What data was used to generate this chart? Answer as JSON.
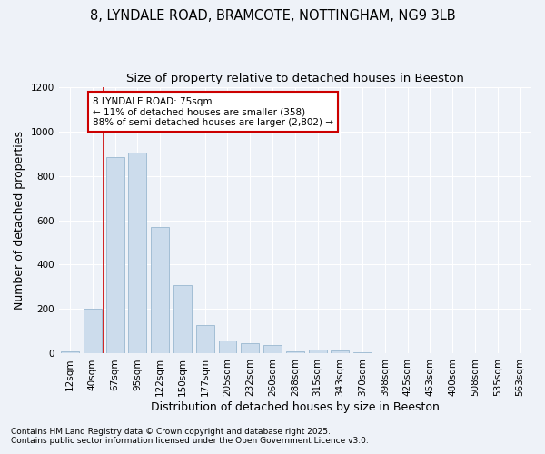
{
  "title_line1": "8, LYNDALE ROAD, BRAMCOTE, NOTTINGHAM, NG9 3LB",
  "title_line2": "Size of property relative to detached houses in Beeston",
  "xlabel": "Distribution of detached houses by size in Beeston",
  "ylabel": "Number of detached properties",
  "categories": [
    "12sqm",
    "40sqm",
    "67sqm",
    "95sqm",
    "122sqm",
    "150sqm",
    "177sqm",
    "205sqm",
    "232sqm",
    "260sqm",
    "288sqm",
    "315sqm",
    "343sqm",
    "370sqm",
    "398sqm",
    "425sqm",
    "453sqm",
    "480sqm",
    "508sqm",
    "535sqm",
    "563sqm"
  ],
  "values": [
    10,
    200,
    885,
    905,
    570,
    310,
    130,
    60,
    45,
    40,
    10,
    18,
    15,
    5,
    3,
    2,
    2,
    1,
    1,
    1,
    1
  ],
  "bar_color": "#ccdcec",
  "bar_edge_color": "#9ab8d0",
  "vline_x_index": 2,
  "vline_color": "#cc0000",
  "annotation_text": "8 LYNDALE ROAD: 75sqm\n← 11% of detached houses are smaller (358)\n88% of semi-detached houses are larger (2,802) →",
  "annotation_box_color": "#ffffff",
  "annotation_box_edge": "#cc0000",
  "ylim": [
    0,
    1200
  ],
  "yticks": [
    0,
    200,
    400,
    600,
    800,
    1000,
    1200
  ],
  "footnote1": "Contains HM Land Registry data © Crown copyright and database right 2025.",
  "footnote2": "Contains public sector information licensed under the Open Government Licence v3.0.",
  "bg_color": "#eef2f8",
  "plot_bg_color": "#eef2f8",
  "grid_color": "#ffffff",
  "title_fontsize": 10.5,
  "subtitle_fontsize": 9.5,
  "axis_label_fontsize": 9,
  "tick_fontsize": 7.5,
  "footnote_fontsize": 6.5
}
